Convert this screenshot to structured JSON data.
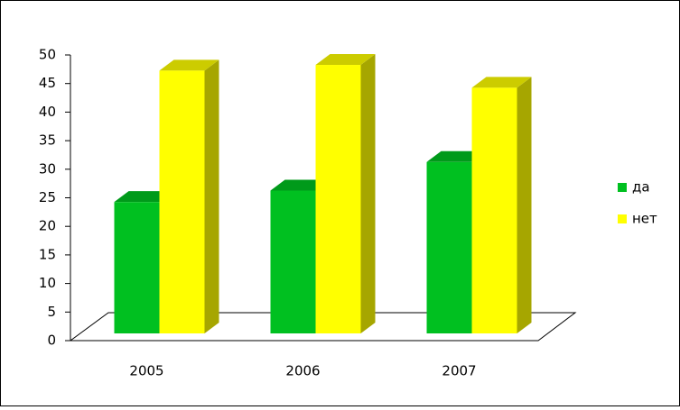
{
  "chart_data": {
    "type": "bar3d",
    "categories": [
      "2005",
      "2006",
      "2007"
    ],
    "series": [
      {
        "name": "да",
        "color": "#00c020",
        "values": [
          23,
          25,
          30
        ]
      },
      {
        "name": "нет",
        "color": "#ffff00",
        "values": [
          46,
          47,
          43
        ]
      }
    ],
    "ylim": [
      0,
      50
    ],
    "yticks": [
      0,
      5,
      10,
      15,
      20,
      25,
      30,
      35,
      40,
      45,
      50
    ],
    "legend": "right"
  }
}
